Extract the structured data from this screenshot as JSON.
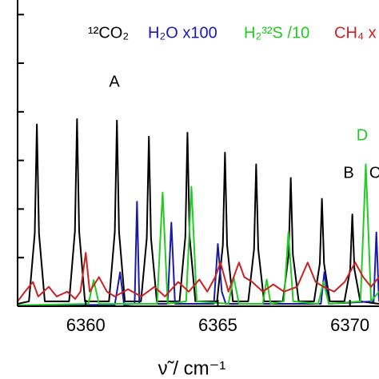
{
  "chart_data": {
    "type": "line",
    "x_label": "ν̃ / cm⁻¹",
    "xlim": [
      6357.42,
      6371.1
    ],
    "xticks": [
      6360,
      6365,
      6370
    ],
    "ylim": [
      0,
      6.3
    ],
    "yticks": [
      0,
      1,
      2,
      3,
      4,
      5,
      6
    ],
    "legend": "top",
    "annotations": [
      {
        "text": "A",
        "color": "#000000"
      },
      {
        "text": "B",
        "color": "#000000"
      },
      {
        "text": "D",
        "color": "#22cc22"
      },
      {
        "text": "C",
        "color": "#000000"
      }
    ],
    "series": [
      {
        "name": "¹²CO₂",
        "color": "#000000",
        "x": [
          6357.42,
          6357.85,
          6358.07,
          6358.15,
          6358.23,
          6358.45,
          6359.37,
          6359.59,
          6359.67,
          6359.75,
          6359.97,
          6360.88,
          6361.1,
          6361.18,
          6361.26,
          6361.48,
          6362.09,
          6362.31,
          6362.39,
          6362.47,
          6362.69,
          6363.55,
          6363.77,
          6363.85,
          6363.93,
          6364.15,
          6364.97,
          6365.19,
          6365.27,
          6365.35,
          6365.57,
          6366.15,
          6366.37,
          6366.45,
          6366.53,
          6366.75,
          6367.46,
          6367.68,
          6367.76,
          6367.84,
          6368.06,
          6368.64,
          6368.86,
          6368.94,
          6369.02,
          6369.24,
          6369.79,
          6370.01,
          6370.09,
          6370.17,
          6370.39,
          6371.1
        ],
        "values": [
          0.05,
          0.1,
          1.5,
          3.74,
          1.5,
          0.1,
          0.1,
          1.54,
          3.85,
          1.54,
          0.1,
          0.1,
          1.53,
          3.82,
          1.53,
          0.1,
          0.1,
          1.4,
          3.49,
          1.4,
          0.1,
          0.1,
          1.43,
          3.57,
          1.43,
          0.1,
          0.1,
          1.26,
          3.16,
          1.26,
          0.1,
          0.1,
          1.17,
          2.92,
          1.17,
          0.1,
          0.1,
          1.06,
          2.64,
          1.06,
          0.1,
          0.1,
          0.88,
          2.21,
          0.88,
          0.1,
          0.1,
          0.76,
          1.89,
          0.76,
          0.1,
          0.05
        ]
      },
      {
        "name": "H₂O x100",
        "color": "#1a1aaa",
        "x": [
          6357.42,
          6361.1,
          6361.3,
          6361.45,
          6361.85,
          6361.94,
          6362.03,
          6363.1,
          6363.24,
          6363.38,
          6364.85,
          6365.0,
          6365.15,
          6365.3,
          6368.9,
          6369.03,
          6369.2,
          6370.9,
          6371.0,
          6371.1
        ],
        "values": [
          0.02,
          0.03,
          0.7,
          0.03,
          0.05,
          2.15,
          0.05,
          0.05,
          1.72,
          0.05,
          0.05,
          1.28,
          0.3,
          0.05,
          0.05,
          0.7,
          0.05,
          0.1,
          1.52,
          0.1
        ]
      },
      {
        "name": "H₂³²S /10",
        "color": "#22cc22",
        "x": [
          6357.42,
          6360.1,
          6360.3,
          6360.5,
          6362.7,
          6362.91,
          6363.1,
          6363.8,
          6364.0,
          6364.2,
          6365.4,
          6365.6,
          6365.8,
          6366.7,
          6366.85,
          6367.0,
          6367.5,
          6367.67,
          6367.85,
          6368.8,
          6369.0,
          6369.2,
          6370.4,
          6370.6,
          6370.8,
          6371.1
        ],
        "values": [
          0.02,
          0.05,
          0.54,
          0.05,
          0.05,
          2.34,
          0.05,
          0.1,
          2.46,
          0.1,
          0.05,
          0.6,
          0.05,
          0.05,
          0.55,
          0.05,
          0.1,
          1.52,
          0.1,
          0.05,
          0.5,
          0.05,
          0.1,
          2.92,
          0.1,
          0.3
        ]
      },
      {
        "name": "CH₄ x",
        "color": "#cc2222",
        "x": [
          6357.42,
          6357.7,
          6358.0,
          6358.2,
          6358.6,
          6358.9,
          6359.3,
          6359.6,
          6359.8,
          6360.0,
          6360.15,
          6360.5,
          6360.8,
          6361.1,
          6361.6,
          6362.1,
          6362.6,
          6363.0,
          6363.5,
          6363.9,
          6364.3,
          6364.6,
          6364.9,
          6365.1,
          6365.4,
          6365.8,
          6366.0,
          6366.3,
          6366.7,
          6367.1,
          6367.5,
          6368.0,
          6368.4,
          6368.7,
          6369.0,
          6369.4,
          6369.8,
          6370.2,
          6370.5,
          6370.8,
          6371.1
        ],
        "values": [
          0.1,
          0.3,
          0.5,
          0.2,
          0.4,
          0.2,
          0.3,
          0.15,
          0.3,
          1.1,
          0.3,
          0.6,
          0.3,
          0.2,
          0.35,
          0.2,
          0.4,
          0.2,
          0.5,
          0.3,
          0.55,
          0.3,
          0.6,
          0.9,
          0.3,
          0.9,
          0.6,
          0.5,
          0.3,
          0.45,
          0.3,
          0.4,
          0.9,
          0.5,
          0.4,
          0.3,
          0.5,
          0.9,
          0.6,
          0.4,
          0.6
        ]
      }
    ]
  }
}
